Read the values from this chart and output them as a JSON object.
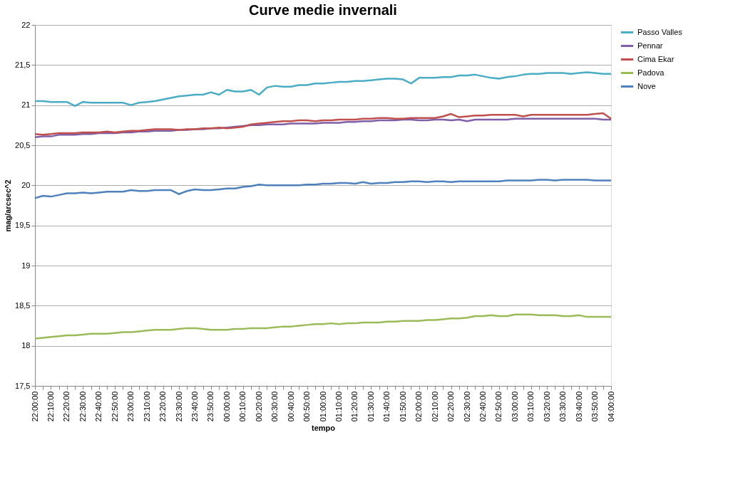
{
  "chart_data": {
    "type": "line",
    "title": "Curve medie invernali",
    "xlabel": "tempo",
    "ylabel": "mag/arcsec^2",
    "categories": [
      "22:00:00",
      null,
      "22:10:00",
      null,
      "22:20:00",
      null,
      "22:30:00",
      null,
      "22:40:00",
      null,
      "22:50:00",
      null,
      "23:00:00",
      null,
      "23:10:00",
      null,
      "23:20:00",
      null,
      "23:30:00",
      null,
      "23:40:00",
      null,
      "23:50:00",
      null,
      "00:00:00",
      null,
      "00:10:00",
      null,
      "00:20:00",
      null,
      "00:30:00",
      null,
      "00:40:00",
      null,
      "00:50:00",
      null,
      "01:00:00",
      null,
      "01:10:00",
      null,
      "01:20:00",
      null,
      "01:30:00",
      null,
      "01:40:00",
      null,
      "01:50:00",
      null,
      "02:00:00",
      null,
      "02:10:00",
      null,
      "02:20:00",
      null,
      "02:30:00",
      null,
      "02:40:00",
      null,
      "02:50:00",
      null,
      "03:00:00",
      null,
      "03:10:00",
      null,
      "03:20:00",
      null,
      "03:30:00",
      null,
      "03:40:00",
      null,
      "03:50:00",
      null,
      "04:00:00"
    ],
    "series": [
      {
        "name": "Passo Valles",
        "color": "#4bacc6",
        "values": [
          21.05,
          21.05,
          21.04,
          21.04,
          21.04,
          20.99,
          21.04,
          21.03,
          21.03,
          21.03,
          21.03,
          21.03,
          21.0,
          21.03,
          21.04,
          21.05,
          21.07,
          21.09,
          21.11,
          21.12,
          21.13,
          21.13,
          21.16,
          21.13,
          21.19,
          21.17,
          21.17,
          21.19,
          21.13,
          21.22,
          21.24,
          21.23,
          21.23,
          21.25,
          21.25,
          21.27,
          21.27,
          21.28,
          21.29,
          21.29,
          21.3,
          21.3,
          21.31,
          21.32,
          21.33,
          21.33,
          21.32,
          21.27,
          21.34,
          21.34,
          21.34,
          21.35,
          21.35,
          21.37,
          21.37,
          21.38,
          21.36,
          21.34,
          21.33,
          21.35,
          21.36,
          21.38,
          21.39,
          21.39,
          21.4,
          21.4,
          21.4,
          21.39,
          21.4,
          21.41,
          21.4,
          21.39,
          21.39
        ]
      },
      {
        "name": "Pennar",
        "color": "#7f5fa8",
        "values": [
          20.6,
          20.61,
          20.61,
          20.63,
          20.63,
          20.63,
          20.64,
          20.64,
          20.65,
          20.65,
          20.65,
          20.66,
          20.66,
          20.67,
          20.67,
          20.68,
          20.68,
          20.68,
          20.69,
          20.69,
          20.7,
          20.7,
          20.71,
          20.71,
          20.72,
          20.73,
          20.74,
          20.75,
          20.75,
          20.76,
          20.76,
          20.76,
          20.77,
          20.77,
          20.77,
          20.77,
          20.78,
          20.78,
          20.78,
          20.79,
          20.79,
          20.8,
          20.8,
          20.81,
          20.81,
          20.81,
          20.82,
          20.82,
          20.81,
          20.81,
          20.82,
          20.82,
          20.81,
          20.82,
          20.8,
          20.82,
          20.82,
          20.82,
          20.82,
          20.82,
          20.83,
          20.83,
          20.83,
          20.83,
          20.83,
          20.83,
          20.83,
          20.83,
          20.83,
          20.83,
          20.83,
          20.82,
          20.82
        ]
      },
      {
        "name": "Cima Ekar",
        "color": "#c0504d",
        "values": [
          20.64,
          20.63,
          20.64,
          20.65,
          20.65,
          20.65,
          20.66,
          20.66,
          20.66,
          20.67,
          20.66,
          20.67,
          20.68,
          20.68,
          20.69,
          20.7,
          20.7,
          20.7,
          20.69,
          20.7,
          20.7,
          20.71,
          20.71,
          20.72,
          20.71,
          20.72,
          20.73,
          20.76,
          20.77,
          20.78,
          20.79,
          20.8,
          20.8,
          20.81,
          20.81,
          20.8,
          20.81,
          20.81,
          20.82,
          20.82,
          20.82,
          20.83,
          20.83,
          20.84,
          20.84,
          20.83,
          20.83,
          20.84,
          20.84,
          20.84,
          20.84,
          20.86,
          20.89,
          20.85,
          20.86,
          20.87,
          20.87,
          20.88,
          20.88,
          20.88,
          20.88,
          20.86,
          20.88,
          20.88,
          20.88,
          20.88,
          20.88,
          20.88,
          20.88,
          20.88,
          20.89,
          20.9,
          20.83
        ]
      },
      {
        "name": "Padova",
        "color": "#9bbb59",
        "values": [
          18.09,
          18.1,
          18.11,
          18.12,
          18.13,
          18.13,
          18.14,
          18.15,
          18.15,
          18.15,
          18.16,
          18.17,
          18.17,
          18.18,
          18.19,
          18.2,
          18.2,
          18.2,
          18.21,
          18.22,
          18.22,
          18.21,
          18.2,
          18.2,
          18.2,
          18.21,
          18.21,
          18.22,
          18.22,
          18.22,
          18.23,
          18.24,
          18.24,
          18.25,
          18.26,
          18.27,
          18.27,
          18.28,
          18.27,
          18.28,
          18.28,
          18.29,
          18.29,
          18.29,
          18.3,
          18.3,
          18.31,
          18.31,
          18.31,
          18.32,
          18.32,
          18.33,
          18.34,
          18.34,
          18.35,
          18.37,
          18.37,
          18.38,
          18.37,
          18.37,
          18.39,
          18.39,
          18.39,
          18.38,
          18.38,
          18.38,
          18.37,
          18.37,
          18.38,
          18.36,
          18.36,
          18.36,
          18.36
        ]
      },
      {
        "name": "Nove",
        "color": "#4f81bd",
        "values": [
          19.84,
          19.87,
          19.86,
          19.88,
          19.9,
          19.9,
          19.91,
          19.9,
          19.91,
          19.92,
          19.92,
          19.92,
          19.94,
          19.93,
          19.93,
          19.94,
          19.94,
          19.94,
          19.89,
          19.93,
          19.95,
          19.94,
          19.94,
          19.95,
          19.96,
          19.96,
          19.98,
          19.99,
          20.01,
          20.0,
          20.0,
          20.0,
          20.0,
          20.0,
          20.01,
          20.01,
          20.02,
          20.02,
          20.03,
          20.03,
          20.02,
          20.04,
          20.02,
          20.03,
          20.03,
          20.04,
          20.04,
          20.05,
          20.05,
          20.04,
          20.05,
          20.05,
          20.04,
          20.05,
          20.05,
          20.05,
          20.05,
          20.05,
          20.05,
          20.06,
          20.06,
          20.06,
          20.06,
          20.07,
          20.07,
          20.06,
          20.07,
          20.07,
          20.07,
          20.07,
          20.06,
          20.06,
          20.06
        ]
      }
    ],
    "ylim": [
      17.5,
      22
    ],
    "yticks": [
      {
        "value": 17.5,
        "label": "17,5"
      },
      18,
      {
        "value": 18.5,
        "label": "18,5"
      },
      19,
      {
        "value": 19.5,
        "label": "19,5"
      },
      20,
      {
        "value": 20.5,
        "label": "20,5"
      },
      21,
      {
        "value": 21.5,
        "label": "21,5"
      },
      22
    ],
    "grid": "y",
    "legend": "right",
    "marker": "none",
    "line_style": "solid"
  }
}
